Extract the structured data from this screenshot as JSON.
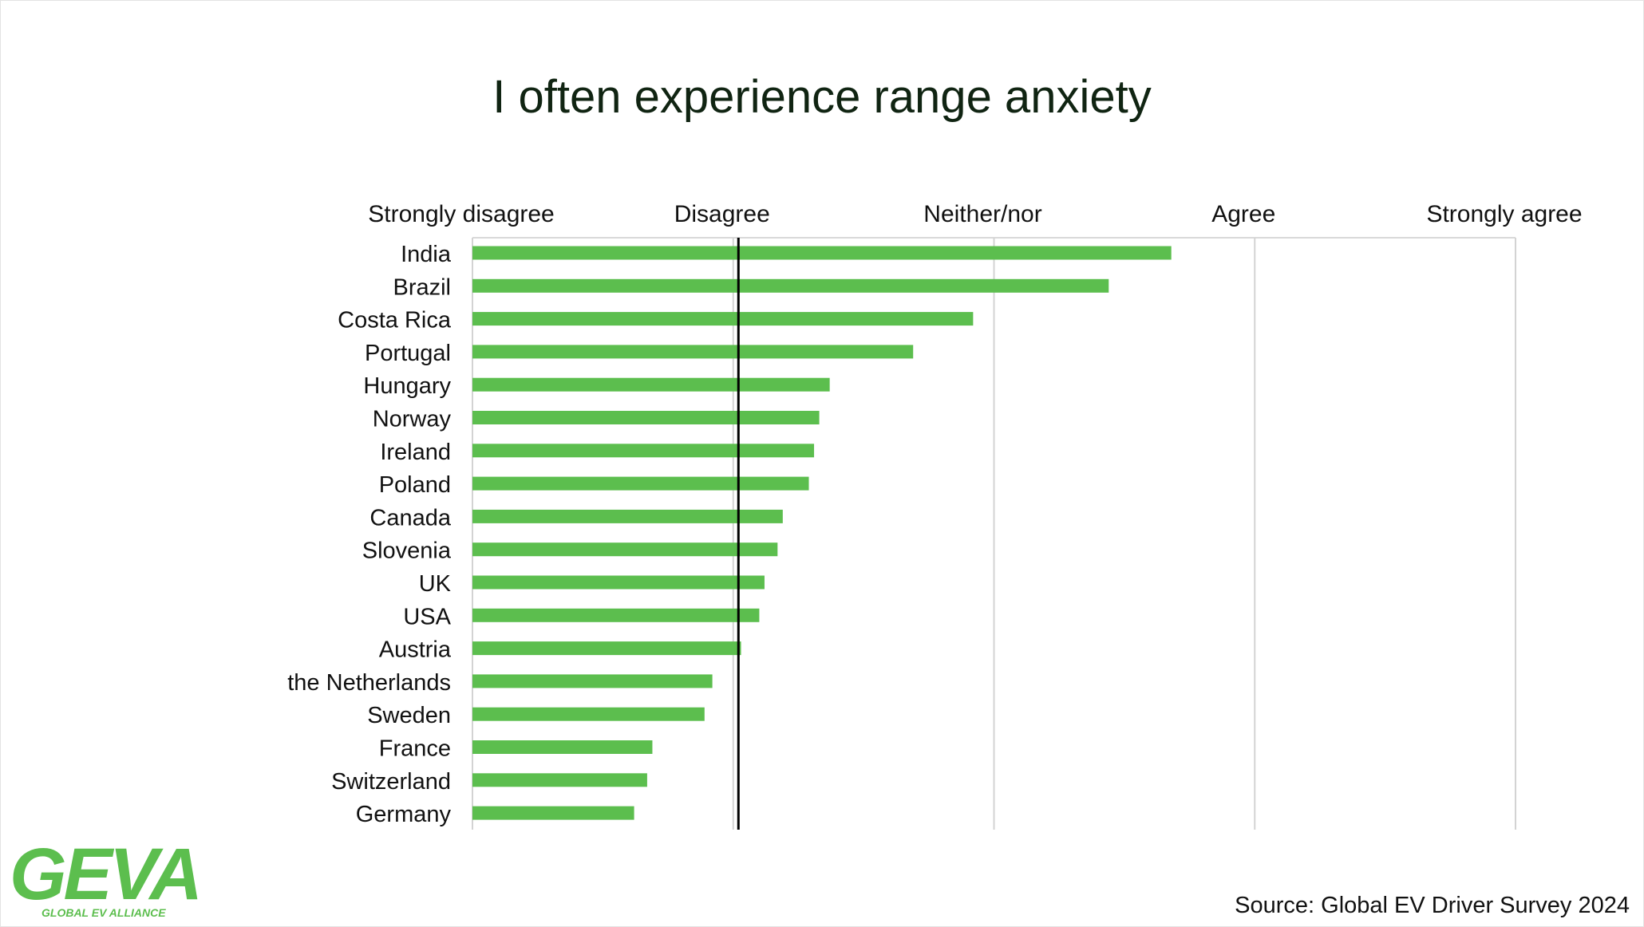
{
  "chart_data": {
    "type": "bar",
    "orientation": "horizontal",
    "title": "I often experience range anxiety",
    "scale_labels": [
      "Strongly disagree",
      "Disagree",
      "Neither/nor",
      "Agree",
      "Strongly agree"
    ],
    "xlim": [
      1,
      5
    ],
    "reference_line": 2.02,
    "categories": [
      "India",
      "Brazil",
      "Costa Rica",
      "Portugal",
      "Hungary",
      "Norway",
      "Ireland",
      "Poland",
      "Canada",
      "Slovenia",
      "UK",
      "USA",
      "Austria",
      "the Netherlands",
      "Sweden",
      "France",
      "Switzerland",
      "Germany"
    ],
    "values": [
      3.68,
      3.44,
      2.92,
      2.69,
      2.37,
      2.33,
      2.31,
      2.29,
      2.19,
      2.17,
      2.12,
      2.1,
      2.03,
      1.92,
      1.89,
      1.69,
      1.67,
      1.62
    ],
    "bar_color": "#5cbe4e",
    "gridlines": true
  },
  "source": "Source: Global EV Driver Survey 2024",
  "logo": {
    "name": "GEVA",
    "tagline": "GLOBAL EV ALLIANCE",
    "color": "#5cbe4e"
  }
}
